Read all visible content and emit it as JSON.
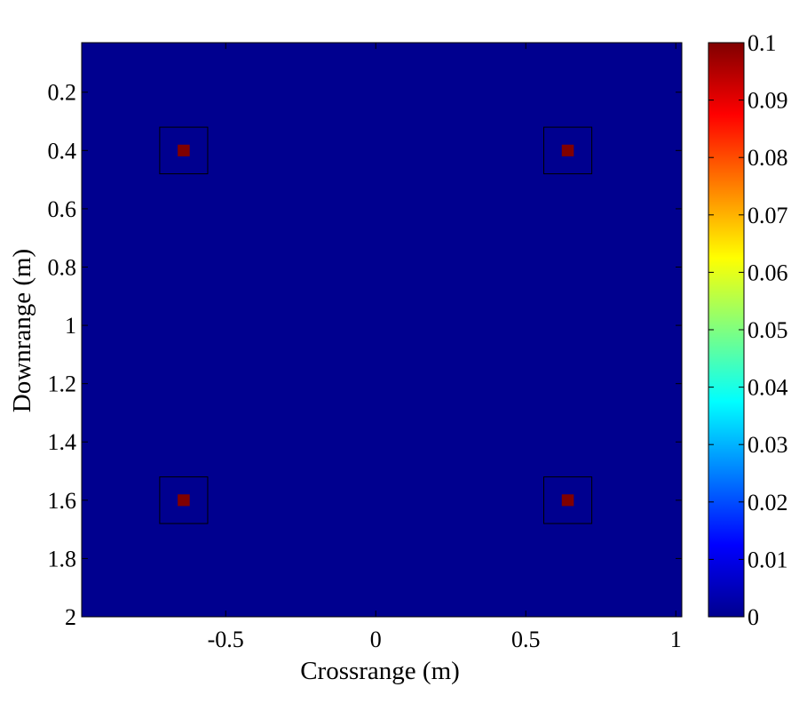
{
  "chart_data": {
    "type": "heatmap",
    "title": "",
    "xlabel": "Crossrange (m)",
    "ylabel": "Downrange (m)",
    "xlim": [
      -0.98,
      1.02
    ],
    "ylim": [
      0.03,
      2.0
    ],
    "y_reversed": true,
    "x_ticks": [
      -0.5,
      0,
      0.5,
      1
    ],
    "x_tick_labels": [
      "-0.5",
      "0",
      "0.5",
      "1"
    ],
    "y_ticks": [
      0.2,
      0.4,
      0.6,
      0.8,
      1,
      1.2,
      1.4,
      1.6,
      1.8,
      2
    ],
    "y_tick_labels": [
      "0.2",
      "0.4",
      "0.6",
      "0.8",
      "1",
      "1.2",
      "1.4",
      "1.6",
      "1.8",
      "2"
    ],
    "background_value": 0,
    "targets": [
      {
        "x": -0.64,
        "y": 0.4,
        "value": 0.1
      },
      {
        "x": 0.64,
        "y": 0.4,
        "value": 0.1
      },
      {
        "x": -0.64,
        "y": 1.6,
        "value": 0.1
      },
      {
        "x": 0.64,
        "y": 1.6,
        "value": 0.1
      }
    ],
    "target_marker_size": 0.04,
    "box_half_width": 0.08,
    "colorbar": {
      "colormap": "jet",
      "range": [
        0,
        0.1
      ],
      "ticks": [
        0,
        0.01,
        0.02,
        0.03,
        0.04,
        0.05,
        0.06,
        0.07,
        0.08,
        0.09,
        0.1
      ],
      "tick_labels": [
        "0",
        "0.01",
        "0.02",
        "0.03",
        "0.04",
        "0.05",
        "0.06",
        "0.07",
        "0.08",
        "0.09",
        "0.1"
      ]
    },
    "colors": {
      "background_cell": "#00008f",
      "target_cell": "#800000",
      "box_stroke": "#000000"
    }
  }
}
